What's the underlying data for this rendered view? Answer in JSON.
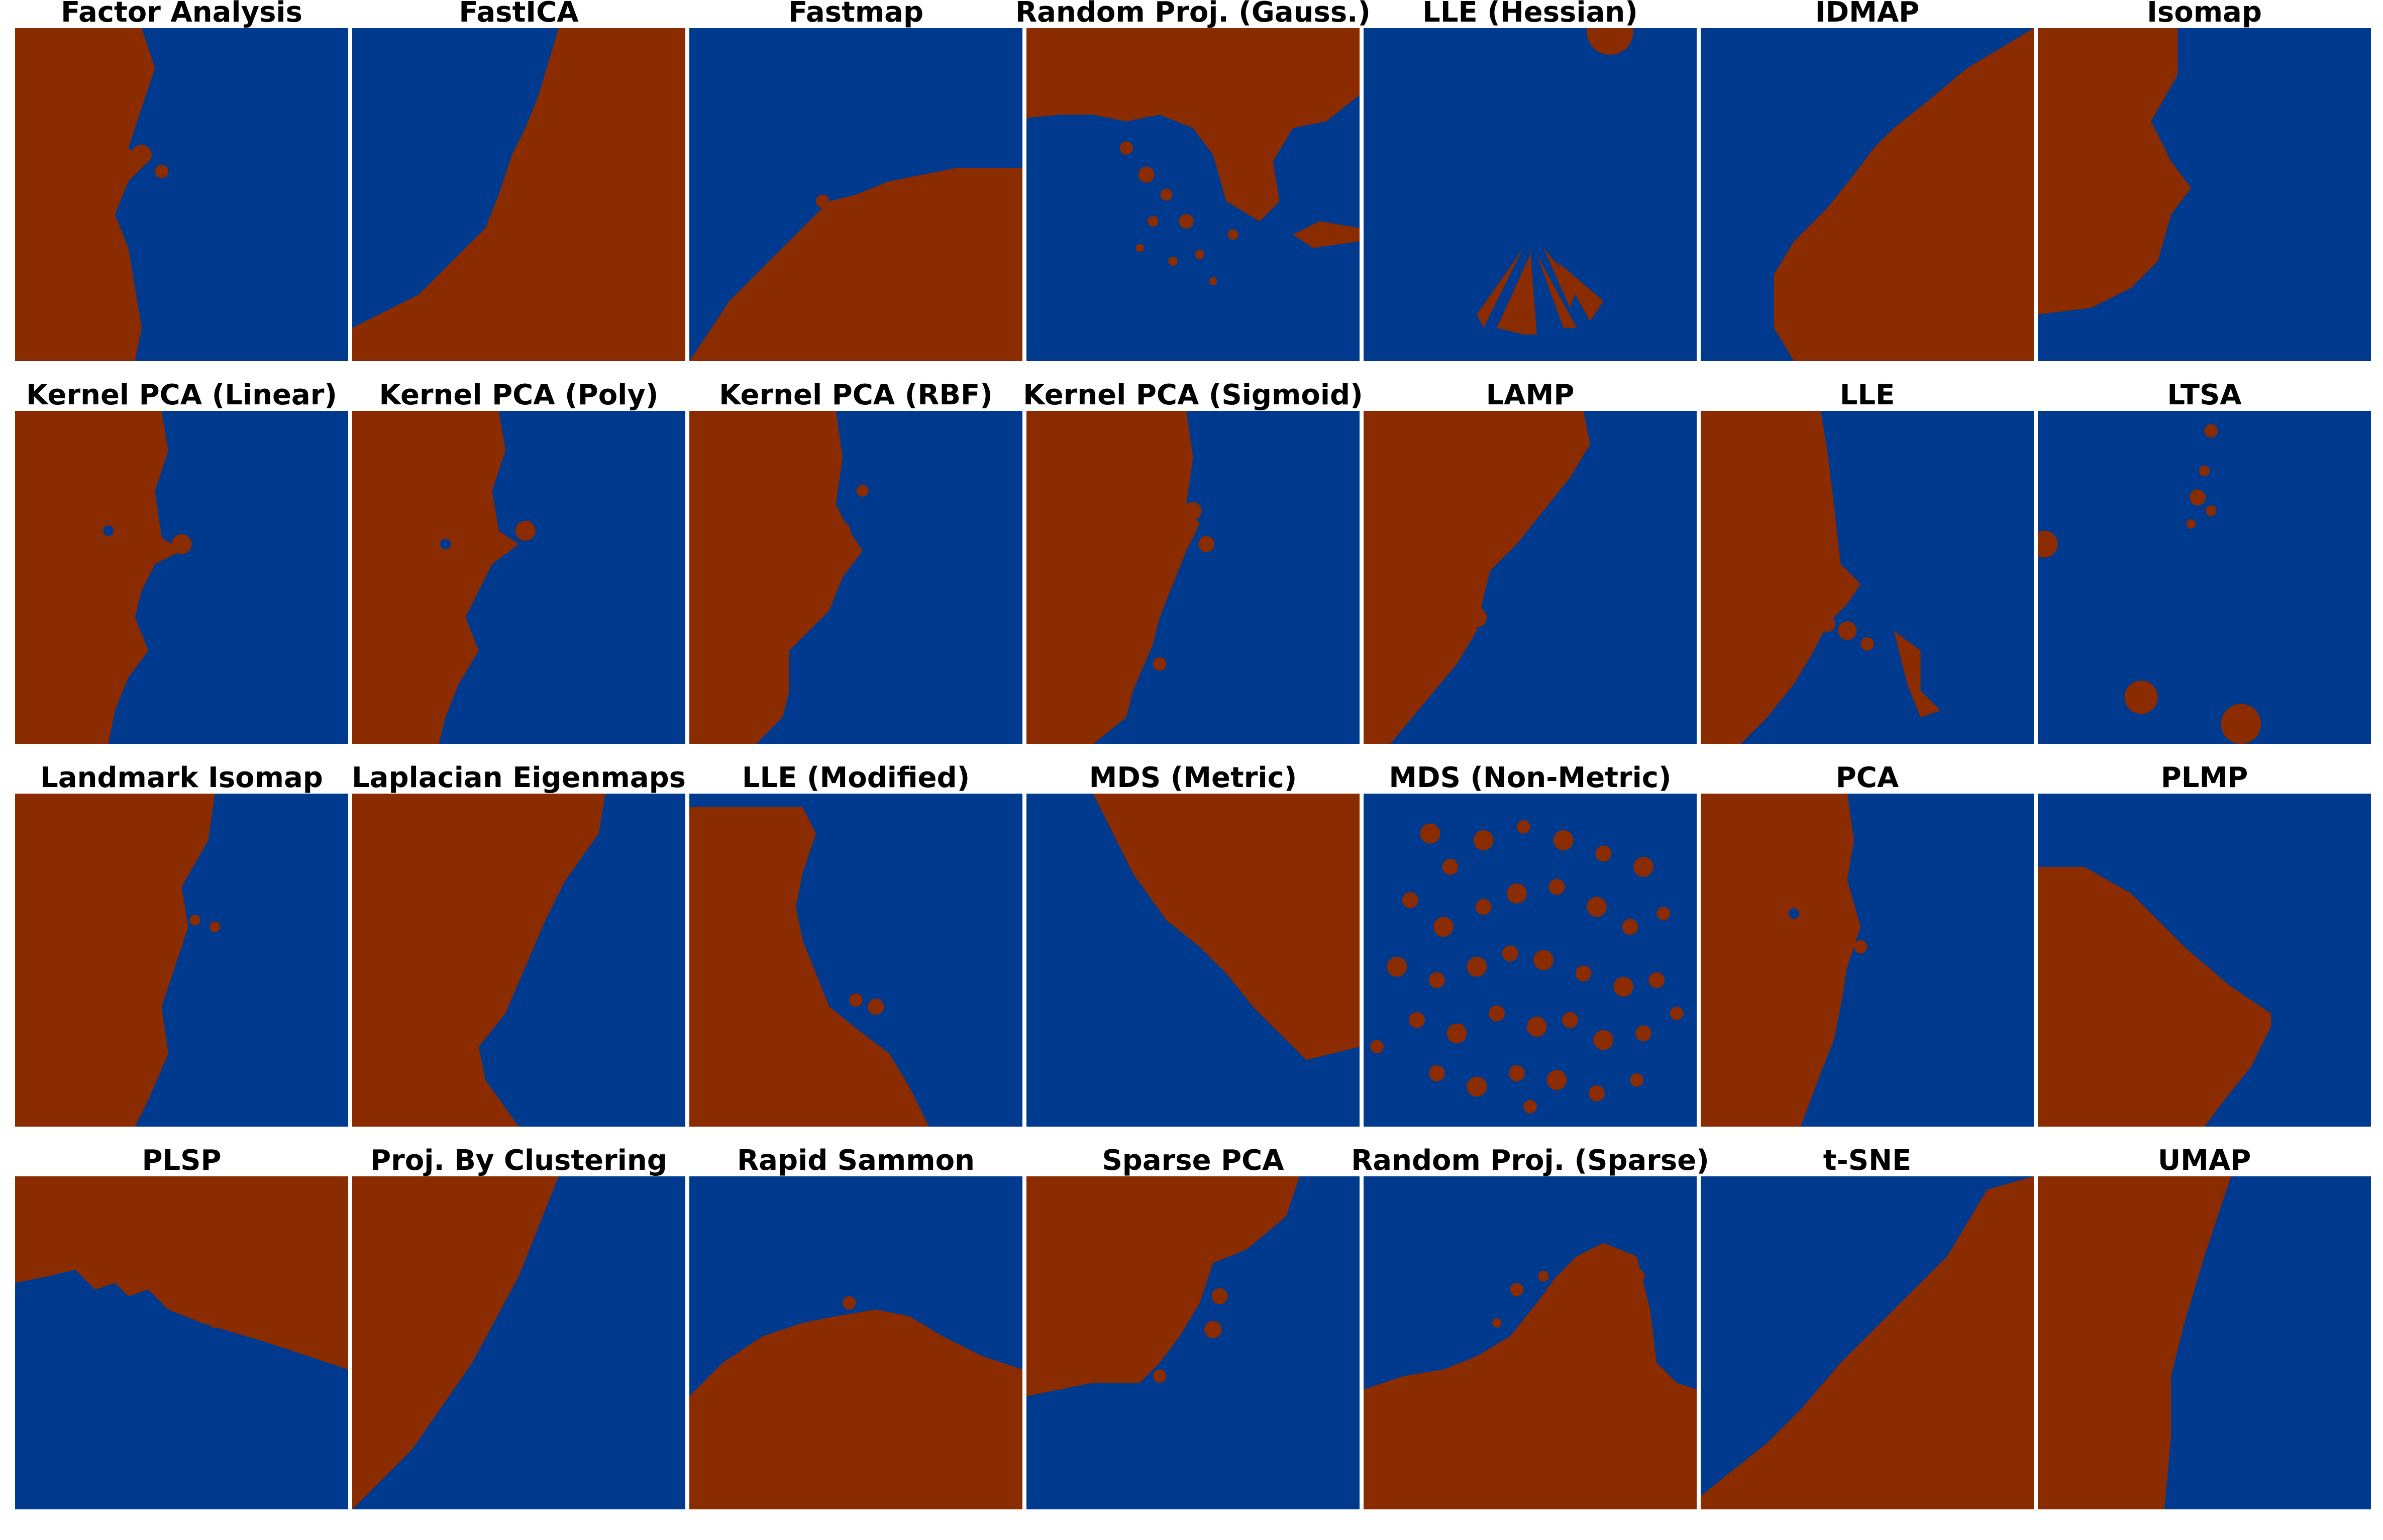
{
  "chart_data": {
    "type": "heatmap",
    "layout": {
      "rows": 4,
      "columns": 7
    },
    "classes": [
      {
        "label": "",
        "color": "#8b2b00"
      },
      {
        "label": "",
        "color": "#003a8e"
      }
    ],
    "panels": [
      {
        "title": "Factor Analysis"
      },
      {
        "title": "FastICA"
      },
      {
        "title": "Fastmap"
      },
      {
        "title": "Random Proj. (Gauss.)"
      },
      {
        "title": "LLE (Hessian)"
      },
      {
        "title": "IDMAP"
      },
      {
        "title": "Isomap"
      },
      {
        "title": "Kernel PCA (Linear)"
      },
      {
        "title": "Kernel PCA (Poly)"
      },
      {
        "title": "Kernel PCA (RBF)"
      },
      {
        "title": "Kernel PCA (Sigmoid)"
      },
      {
        "title": "LAMP"
      },
      {
        "title": "LLE"
      },
      {
        "title": "LTSA"
      },
      {
        "title": "Landmark Isomap"
      },
      {
        "title": "Laplacian Eigenmaps"
      },
      {
        "title": "LLE (Modified)"
      },
      {
        "title": "MDS (Metric)"
      },
      {
        "title": "MDS (Non-Metric)"
      },
      {
        "title": "PCA"
      },
      {
        "title": "PLMP"
      },
      {
        "title": "PLSP"
      },
      {
        "title": "Proj. By Clustering"
      },
      {
        "title": "Rapid Sammon"
      },
      {
        "title": "Sparse PCA"
      },
      {
        "title": "Random Proj. (Sparse)"
      },
      {
        "title": "t-SNE"
      },
      {
        "title": "UMAP"
      }
    ]
  }
}
